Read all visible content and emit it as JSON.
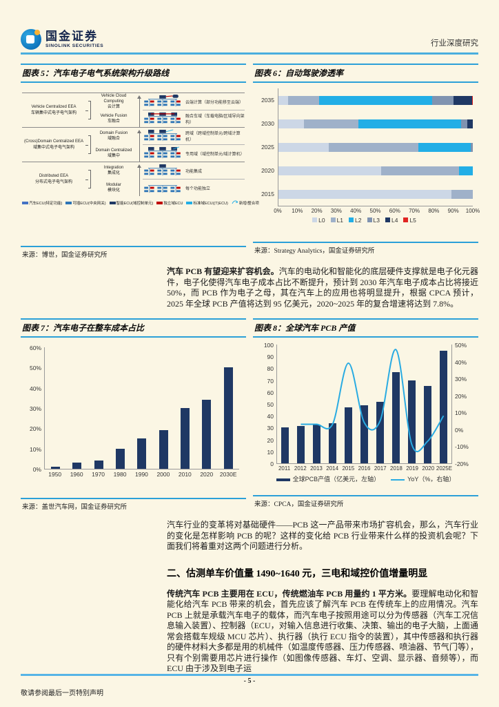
{
  "header": {
    "brand_cn": "国金证券",
    "brand_en": "SINOLINK SECURITIES",
    "doc_type": "行业深度研究"
  },
  "figures": {
    "fig5": {
      "title": "图表 5：汽车电子电气系统架构升级路线",
      "source": "来源：博世，国金证券研究所",
      "groups": [
        {
          "en": "Vehicle Centralized EEA",
          "cn": "车辆集中式电子电气架构",
          "stages": [
            {
              "en": "Vehicle Cloud Computing",
              "cn": "云计算",
              "desc": "云端计算（部分功能移至云端）"
            },
            {
              "en": "Vehicle Fusion",
              "cn": "车融合",
              "desc": "融合车域（车载电脑/区域导向架构）"
            }
          ]
        },
        {
          "en": "(Cross)Domain Centralized EEA",
          "cn": "域集中式电子电气架构",
          "stages": [
            {
              "en": "Domain Fusion",
              "cn": "域融合",
              "desc": "跨域（跨域控制单元/跨域计算机）"
            },
            {
              "en": "Domain Centralized",
              "cn": "域集中",
              "desc": "专用域（域控制单元/域计算机）"
            }
          ]
        },
        {
          "en": "Distributed EEA",
          "cn": "分布式电子电气架构",
          "stages": [
            {
              "en": "Integration",
              "cn": "集成化",
              "desc": "功能集成"
            },
            {
              "en": "Modular",
              "cn": "模块化",
              "desc": "每个功能独立"
            }
          ]
        }
      ],
      "legend": [
        {
          "label": "汽车ECU(特定功能)",
          "color": "#4472c4"
        },
        {
          "label": "可插ECU(中央网关)",
          "color": "#2e75b6"
        },
        {
          "label": "智能ECU(域控制单元)",
          "color": "#1f3864"
        },
        {
          "label": "独立域ECU",
          "color": "#c00000"
        },
        {
          "label": "标准域ECU((T)ECU)",
          "color": "#22aee6"
        },
        {
          "label": "新增/整合项",
          "color": "#22aee6",
          "icon": "arrow"
        }
      ]
    },
    "fig6": {
      "title": "图表 6：自动驾驶渗透率",
      "source": "来源：Strategy Analytics，国金证券研究所"
    },
    "fig7": {
      "title": "图表 7：汽车电子在整车成本占比",
      "source": "来源：盖世汽车网，国金证券研究所"
    },
    "fig8": {
      "title": "图表 8：全球汽车 PCB 产值",
      "source": "来源：CPCA，国金证券研究所"
    }
  },
  "chart_data": [
    {
      "id": "fig6",
      "type": "bar",
      "orientation": "horizontal",
      "stacked": true,
      "title": "自动驾驶渗透率",
      "categories": [
        "2035",
        "2030",
        "2025",
        "2020",
        "2015"
      ],
      "series": [
        {
          "name": "L0",
          "color": "#ccd7e6",
          "values": [
            5,
            13,
            26,
            53,
            89
          ]
        },
        {
          "name": "L1",
          "color": "#9fb1c9",
          "values": [
            16,
            28,
            46,
            40,
            11
          ]
        },
        {
          "name": "L2",
          "color": "#22aee6",
          "values": [
            58,
            53,
            27,
            7,
            0
          ]
        },
        {
          "name": "L3",
          "color": "#8093b0",
          "values": [
            11,
            3,
            1,
            0,
            0
          ]
        },
        {
          "name": "L4",
          "color": "#1f3864",
          "values": [
            9.5,
            3,
            0,
            0,
            0
          ]
        },
        {
          "name": "L5",
          "color": "#e02421",
          "values": [
            0.5,
            0,
            0,
            0,
            0
          ]
        }
      ],
      "xlim": [
        0,
        100
      ],
      "x_tick_labels": [
        "0%",
        "10%",
        "20%",
        "30%",
        "40%",
        "50%",
        "60%",
        "70%",
        "80%",
        "90%",
        "100%"
      ],
      "legend_position": "bottom"
    },
    {
      "id": "fig7",
      "type": "bar",
      "title": "汽车电子在整车成本占比",
      "categories": [
        "1950",
        "1960",
        "1970",
        "1980",
        "1990",
        "2000",
        "2010",
        "2020",
        "2030E"
      ],
      "values": [
        1,
        3,
        4,
        10,
        15,
        19,
        30,
        34,
        50
      ],
      "ylim": [
        0,
        60
      ],
      "y_tick_labels": [
        "0%",
        "10%",
        "20%",
        "30%",
        "40%",
        "50%",
        "60%"
      ],
      "bar_color": "#1f3864",
      "grid": false
    },
    {
      "id": "fig8",
      "type": "combo",
      "title": "全球汽车PCB产值",
      "categories": [
        "2011",
        "2012",
        "2013",
        "2014",
        "2015",
        "2016",
        "2017",
        "2018",
        "2019",
        "2020",
        "2025E"
      ],
      "series": [
        {
          "name": "全球PCB产值（亿美元，左轴）",
          "chart": "bar",
          "axis": "left",
          "color": "#1f3864",
          "values": [
            30.5,
            31.5,
            32.5,
            34,
            47,
            49,
            51.5,
            76.5,
            70,
            65,
            95
          ]
        },
        {
          "name": "YoY（%，右轴）",
          "chart": "line",
          "axis": "right",
          "color": "#29abe2",
          "values": [
            null,
            3,
            3,
            3,
            39,
            4,
            5,
            47,
            -9,
            -7,
            8
          ]
        }
      ],
      "left_ylim": [
        0,
        100
      ],
      "left_tick_step": 10,
      "right_ylim": [
        -20,
        50
      ],
      "right_tick_step": 10,
      "legend_position": "bottom"
    }
  ],
  "paragraphs": {
    "p1_lead": "汽车 PCB 有望迎来扩容机会。",
    "p1_rest": "汽车的电动化和智能化的底层硬件支撑就是电子化元器件，电子化使得汽车电子成本占比不断提升，预计到 2030 年汽车电子成本占比将接近 50%，而 PCB 作为电子之母，其在汽车上的应用也将明显提升，根据 CPCA 预计，2025 年全球 PCB 产值将达到 95 亿美元，2020~2025 年的复合增速将达到 7.8%。",
    "p2": "汽车行业的变革将对基础硬件——PCB 这一产品带来市场扩容机会，那么，汽车行业的变化是怎样影响 PCB 的呢？这样的变化给 PCB 行业带来什么样的投资机会呢？下面我们将着重对这两个问题进行分析。",
    "section_heading": "二、估测单车价值量 1490~1640 元，三电和域控价值增量明显",
    "p3_lead": "传统汽车 PCB 主要用在 ECU，传统燃油车 PCB 用量约 1 平方米。",
    "p3_rest": "要理解电动化和智能化给汽车 PCB 带来的机会，首先应该了解汽车 PCB 在传统车上的应用情况。汽车 PCB 上就是承载汽车电子的载体，而汽车电子按照用途可以分为传感器（汽车工况信息输入装置）、控制器（ECU，对输入信息进行收集、决策、输出的电子大脑，上面通常会搭载车规级 MCU 芯片）、执行器（执行 ECU 指令的装置），其中传感器和执行器的硬件材料大多都是用的机械件（如温度传感器、压力传感器、喷油器、节气门等），只有个别需要用芯片进行操作（如图像传感器、车灯、空调、显示器、音频等），而 ECU 由于涉及到电子运"
  },
  "footer": {
    "page_number": "- 5 -",
    "disclaimer": "敬请参阅最后一页特别声明"
  }
}
